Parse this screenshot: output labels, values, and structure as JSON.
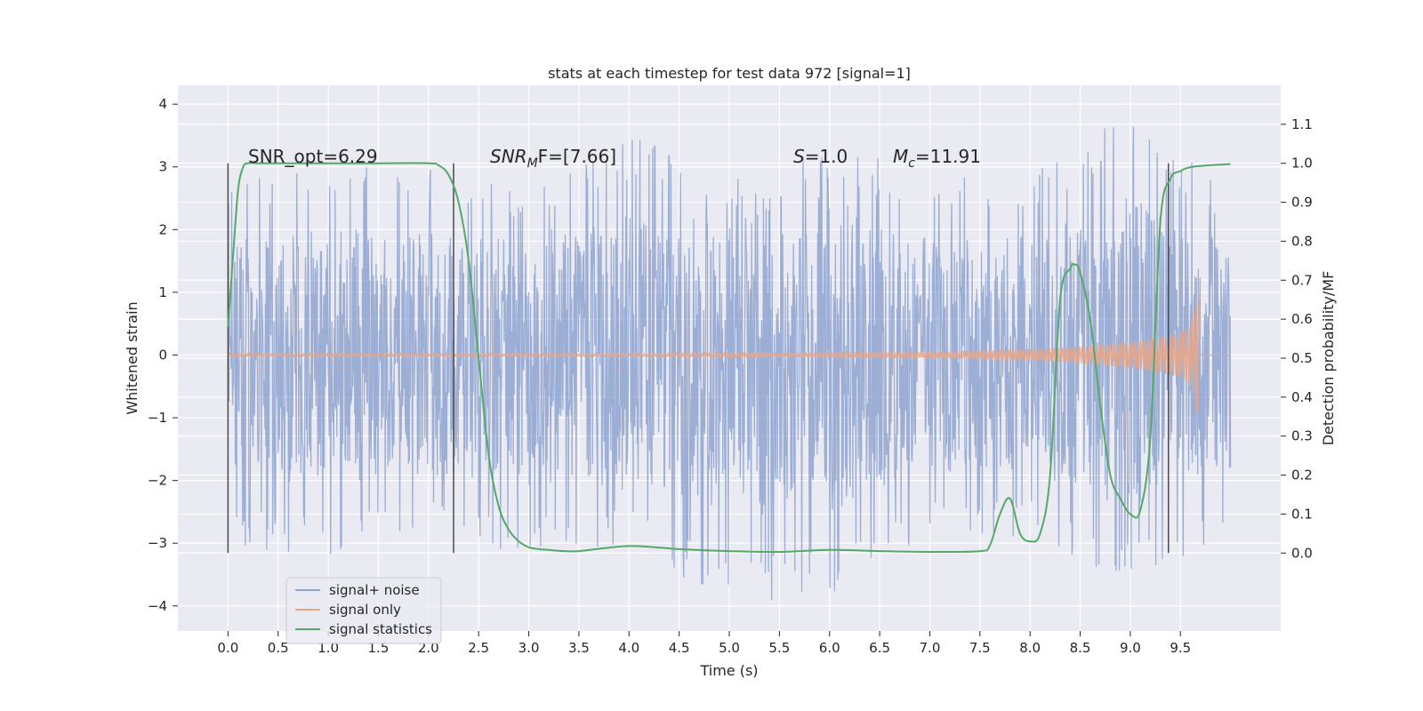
{
  "chart_data": {
    "type": "line",
    "title": "stats at each timestep for test data 972 [signal=1]",
    "xlabel": "Time (s)",
    "ylabel_left": "Whitened strain",
    "ylabel_right": "Detection probability/MF",
    "xlim": [
      -0.5,
      10.5
    ],
    "ylim_left": [
      -4.4,
      4.3
    ],
    "ylim_right": [
      -0.2,
      1.2
    ],
    "x_ticks": [
      "0.0",
      "0.5",
      "1.0",
      "1.5",
      "2.0",
      "2.5",
      "3.0",
      "3.5",
      "4.0",
      "4.5",
      "5.0",
      "5.5",
      "6.0",
      "6.5",
      "7.0",
      "7.5",
      "8.0",
      "8.5",
      "9.0",
      "9.5"
    ],
    "y_ticks_left": [
      "−4",
      "−3",
      "−2",
      "−1",
      "0",
      "1",
      "2",
      "3",
      "4"
    ],
    "y_ticks_right": [
      "0.0",
      "0.1",
      "0.2",
      "0.3",
      "0.4",
      "0.5",
      "0.6",
      "0.7",
      "0.8",
      "0.9",
      "1.0",
      "1.1"
    ],
    "grid": true,
    "legend_position": "lower-left",
    "annotations": [
      "SNR_opt=6.29",
      "SNR",
      "M",
      "F=[7.66]",
      "S",
      "=1.0",
      "M",
      "c",
      "=11.91"
    ],
    "vertical_lines_x": [
      0.0,
      2.25,
      9.38
    ],
    "series": [
      {
        "name": "signal+ noise",
        "color": "#8fa3cf",
        "axis": "left",
        "x_range": [
          0.0,
          10.0
        ],
        "envelope": {
          "x": [
            0.0,
            1.0,
            2.0,
            3.0,
            4.0,
            5.0,
            6.0,
            7.0,
            8.0,
            9.0,
            10.0
          ],
          "upper": [
            2.8,
            3.0,
            3.0,
            2.7,
            3.5,
            2.9,
            3.3,
            3.0,
            2.9,
            3.9,
            2.6
          ],
          "lower": [
            -3.1,
            -3.2,
            -2.9,
            -3.2,
            -3.0,
            -4.0,
            -3.9,
            -2.9,
            -2.9,
            -3.7,
            -2.8
          ]
        }
      },
      {
        "name": "signal only",
        "color": "#e8a689",
        "axis": "left",
        "x": [
          0.0,
          4.0,
          5.0,
          6.0,
          7.0,
          7.5,
          8.0,
          8.5,
          9.0,
          9.3,
          9.5,
          9.6,
          9.65,
          9.68
        ],
        "amplitude": [
          0.02,
          0.02,
          0.03,
          0.04,
          0.05,
          0.07,
          0.09,
          0.13,
          0.2,
          0.27,
          0.35,
          0.45,
          0.8,
          1.0
        ]
      },
      {
        "name": "signal statistics",
        "color": "#55a868",
        "axis": "right",
        "x": [
          0.0,
          0.05,
          0.1,
          0.15,
          0.2,
          0.3,
          0.5,
          1.0,
          1.5,
          2.0,
          2.1,
          2.2,
          2.3,
          2.4,
          2.5,
          2.6,
          2.7,
          2.8,
          2.9,
          3.0,
          3.1,
          3.2,
          3.3,
          3.5,
          4.0,
          4.5,
          5.0,
          5.5,
          6.0,
          6.5,
          7.0,
          7.5,
          7.6,
          7.7,
          7.8,
          7.9,
          8.0,
          8.1,
          8.2,
          8.3,
          8.4,
          8.45,
          8.5,
          8.6,
          8.7,
          8.8,
          8.9,
          9.0,
          9.1,
          9.2,
          9.3,
          9.4,
          9.5,
          9.6,
          9.8,
          10.0
        ],
        "y": [
          0.58,
          0.76,
          0.93,
          0.99,
          1.0,
          1.0,
          1.0,
          1.0,
          1.0,
          1.0,
          0.995,
          0.97,
          0.9,
          0.75,
          0.5,
          0.25,
          0.12,
          0.06,
          0.03,
          0.015,
          0.01,
          0.008,
          0.006,
          0.005,
          0.018,
          0.01,
          0.005,
          0.003,
          0.008,
          0.005,
          0.003,
          0.005,
          0.02,
          0.1,
          0.14,
          0.05,
          0.03,
          0.05,
          0.2,
          0.65,
          0.73,
          0.74,
          0.72,
          0.6,
          0.38,
          0.2,
          0.14,
          0.1,
          0.11,
          0.3,
          0.85,
          0.96,
          0.98,
          0.99,
          0.995,
          0.998
        ]
      }
    ]
  }
}
